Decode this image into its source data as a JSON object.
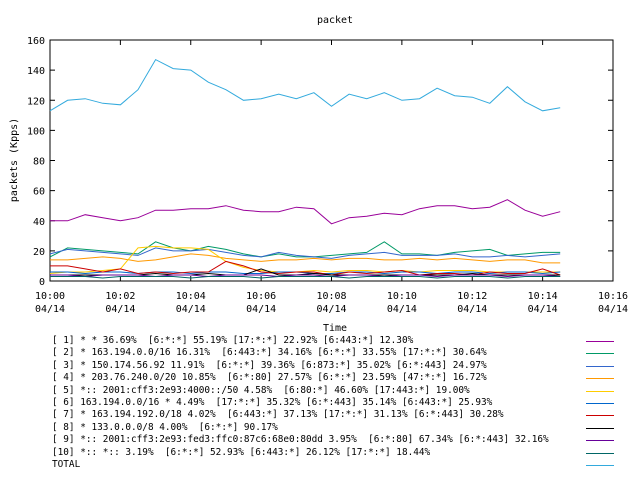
{
  "chart_data": {
    "type": "line",
    "title": "packet",
    "xlabel": "Time",
    "ylabel": "packets (Kpps)",
    "ylim": [
      0,
      160
    ],
    "yticks": [
      0,
      20,
      40,
      60,
      80,
      100,
      120,
      140,
      160
    ],
    "xlim_minutes": [
      0,
      16
    ],
    "xticks": [
      {
        "time": "10:00",
        "date": "04/14",
        "minute": 0
      },
      {
        "time": "10:02",
        "date": "04/14",
        "minute": 2
      },
      {
        "time": "10:04",
        "date": "04/14",
        "minute": 4
      },
      {
        "time": "10:06",
        "date": "04/14",
        "minute": 6
      },
      {
        "time": "10:08",
        "date": "04/14",
        "minute": 8
      },
      {
        "time": "10:10",
        "date": "04/14",
        "minute": 10
      },
      {
        "time": "10:12",
        "date": "04/14",
        "minute": 12
      },
      {
        "time": "10:14",
        "date": "04/14",
        "minute": 14
      },
      {
        "time": "10:16",
        "date": "04/14",
        "minute": 16
      }
    ],
    "x": [
      0,
      0.5,
      1,
      1.5,
      2,
      2.5,
      3,
      3.5,
      4,
      4.5,
      5,
      5.5,
      6,
      6.5,
      7,
      7.5,
      8,
      8.5,
      9,
      9.5,
      10,
      10.5,
      11,
      11.5,
      12,
      12.5,
      13,
      13.5,
      14,
      14.5
    ],
    "series": [
      {
        "name": "[ 1] * * 36.69%  [6:*:*] 55.19% [17:*:*] 22.92% [6:443:*] 12.30%",
        "color": "#990099",
        "values": [
          40,
          40,
          44,
          42,
          40,
          42,
          47,
          47,
          48,
          48,
          50,
          47,
          46,
          46,
          49,
          48,
          38,
          42,
          43,
          45,
          44,
          48,
          50,
          50,
          48,
          49,
          54,
          47,
          43,
          46
        ]
      },
      {
        "name": "[ 2] * 163.194.0.0/16 16.31%  [6:443:*] 34.16% [6:*:*] 33.55% [17:*:*] 30.64%",
        "color": "#009966",
        "values": [
          16,
          22,
          21,
          20,
          19,
          18,
          26,
          22,
          20,
          23,
          21,
          18,
          16,
          18,
          16,
          16,
          17,
          18,
          19,
          26,
          18,
          18,
          17,
          19,
          20,
          21,
          17,
          18,
          19,
          19
        ]
      },
      {
        "name": "[ 3] * 150.174.56.92 11.91%  [6:*:*] 39.36% [6:873:*] 35.02% [6:*:443] 24.97%",
        "color": "#3366cc",
        "values": [
          18,
          21,
          20,
          19,
          18,
          17,
          22,
          20,
          20,
          21,
          19,
          17,
          16,
          19,
          17,
          16,
          15,
          17,
          18,
          19,
          17,
          17,
          17,
          18,
          16,
          16,
          17,
          16,
          17,
          18
        ]
      },
      {
        "name": "[ 4] * 203.76.240.0/20 10.85%  [6:*:80] 27.57% [6:*:*] 23.59% [47:*:*] 16.72%",
        "color": "#ff9900",
        "values": [
          14,
          14,
          15,
          16,
          15,
          13,
          14,
          16,
          18,
          17,
          15,
          14,
          13,
          14,
          14,
          15,
          14,
          15,
          15,
          14,
          14,
          15,
          14,
          15,
          14,
          13,
          14,
          14,
          12,
          12
        ]
      },
      {
        "name": "[ 5] *:: 2001:cff3:2e93:4000::/50 4.58%  [6:80:*] 46.60% [17:443:*] 19.00%",
        "color": "#ffcc00",
        "values": [
          5,
          6,
          6,
          7,
          8,
          22,
          23,
          22,
          22,
          21,
          13,
          9,
          7,
          6,
          6,
          7,
          6,
          7,
          7,
          6,
          7,
          6,
          7,
          7,
          7,
          6,
          6,
          6,
          6,
          6
        ]
      },
      {
        "name": "[ 6] 163.194.0.0/16 * 4.49%  [17:*:*] 35.32% [6:*:443] 35.14% [6:443:*] 25.93%",
        "color": "#0066cc",
        "values": [
          6,
          6,
          5,
          6,
          6,
          5,
          6,
          6,
          5,
          6,
          6,
          5,
          5,
          6,
          6,
          5,
          5,
          6,
          6,
          5,
          6,
          6,
          5,
          6,
          6,
          5,
          6,
          6,
          5,
          6
        ]
      },
      {
        "name": "[ 7] * 163.194.192.0/18 4.02%  [6:443:*] 37.13% [17:*:*] 31.13% [6:*:443] 30.28%",
        "color": "#cc0000",
        "values": [
          10,
          10,
          8,
          6,
          8,
          5,
          6,
          5,
          6,
          6,
          13,
          10,
          6,
          5,
          6,
          6,
          4,
          6,
          5,
          6,
          7,
          4,
          5,
          5,
          4,
          6,
          5,
          5,
          8,
          4
        ]
      },
      {
        "name": "[ 8] * 133.0.0.0/8 4.00%  [6:*:*] 90.17%",
        "color": "#000000",
        "values": [
          4,
          4,
          4,
          4,
          4,
          4,
          5,
          4,
          4,
          5,
          4,
          4,
          8,
          4,
          4,
          5,
          4,
          4,
          4,
          4,
          4,
          4,
          4,
          4,
          5,
          4,
          4,
          4,
          4,
          4
        ]
      },
      {
        "name": "[ 9] *:: 2001:cff3:2e93:fed3:ffc0:87c6:68e0:80dd 3.95%  [6:*:80] 67.34% [6:*:443] 32.16%",
        "color": "#660099",
        "values": [
          4,
          4,
          3,
          4,
          4,
          4,
          3,
          4,
          4,
          3,
          4,
          4,
          4,
          3,
          4,
          4,
          3,
          4,
          4,
          3,
          4,
          4,
          3,
          4,
          4,
          4,
          3,
          4,
          4,
          3
        ]
      },
      {
        "name": "[10] *:: *:: 3.19%  [6:*:*] 52.93% [6:443:*] 26.12% [17:*:*] 18.44%",
        "color": "#006666",
        "values": [
          3,
          3,
          3,
          2,
          3,
          3,
          3,
          3,
          2,
          3,
          3,
          3,
          2,
          3,
          3,
          3,
          3,
          2,
          3,
          3,
          3,
          3,
          2,
          3,
          3,
          3,
          2,
          3,
          3,
          3
        ]
      },
      {
        "name": "TOTAL",
        "color": "#33aadd",
        "values": [
          113,
          120,
          121,
          118,
          117,
          127,
          147,
          141,
          140,
          132,
          127,
          120,
          121,
          124,
          121,
          125,
          116,
          124,
          121,
          125,
          120,
          121,
          128,
          123,
          122,
          118,
          129,
          119,
          113,
          115
        ]
      }
    ]
  }
}
